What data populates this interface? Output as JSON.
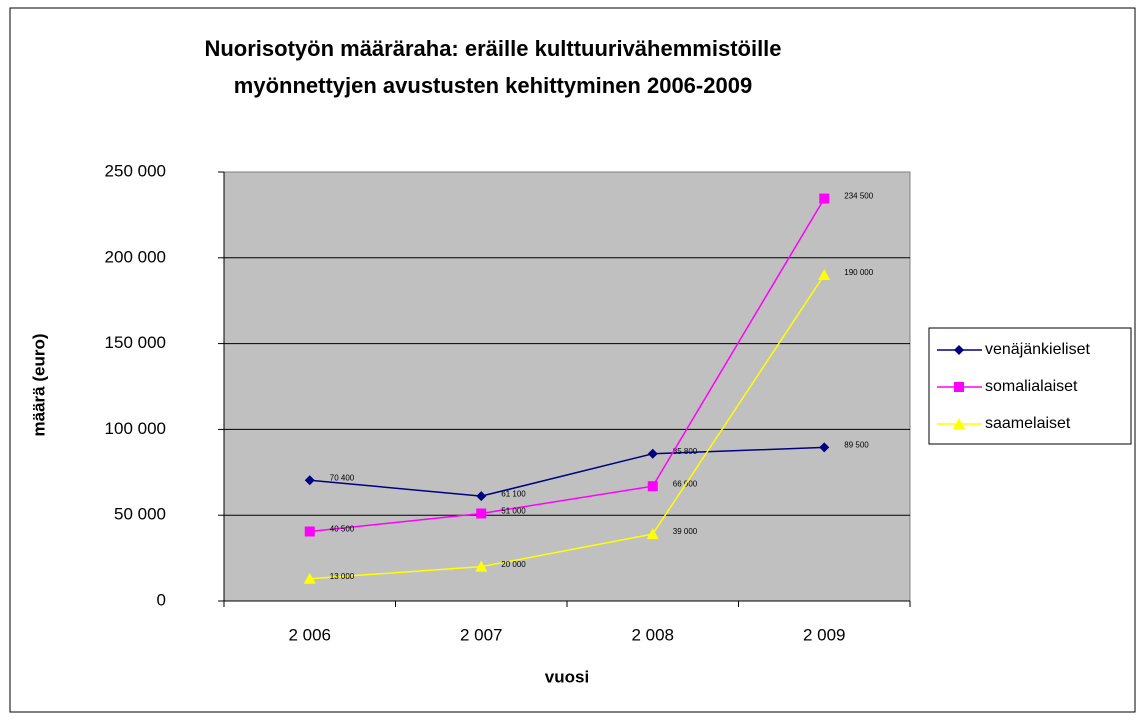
{
  "chart_data": {
    "type": "line",
    "title": [
      "Nuorisotyön määräraha: eräille kulttuurivähemmistöille",
      "myönnettyjen avustusten kehittyminen 2006-2009"
    ],
    "x_label": "vuosi",
    "y_label": "määrä (euro)",
    "categories": [
      "2 006",
      "2 007",
      "2 008",
      "2 009"
    ],
    "ylim": [
      0,
      250000
    ],
    "yticks": [
      0,
      {
        "value": 50000,
        "label": "50 000"
      },
      {
        "value": 100000,
        "label": "100 000"
      },
      {
        "value": 150000,
        "label": "150 000"
      },
      {
        "value": 200000,
        "label": "200 000"
      },
      {
        "value": 250000,
        "label": "250 000"
      }
    ],
    "grid": true,
    "legend": "right",
    "series": [
      {
        "name": "venäjänkieliset",
        "color": "#000080",
        "marker": "diamond",
        "values": [
          70400,
          61100,
          85800,
          89500
        ],
        "value_labels": [
          "70 400",
          "61 100",
          "85 800",
          "89 500"
        ]
      },
      {
        "name": "somalialaiset",
        "color": "#FF00FF",
        "marker": "square",
        "values": [
          40500,
          51000,
          66900,
          234500
        ],
        "value_labels": [
          "40 500",
          "51 000",
          "66 900",
          "234 500"
        ]
      },
      {
        "name": "saamelaiset",
        "color": "#FFFF00",
        "marker": "triangle",
        "values": [
          13000,
          20000,
          39000,
          190000
        ],
        "value_labels": [
          "13 000",
          "20 000",
          "39 000",
          "190 000"
        ]
      }
    ]
  }
}
